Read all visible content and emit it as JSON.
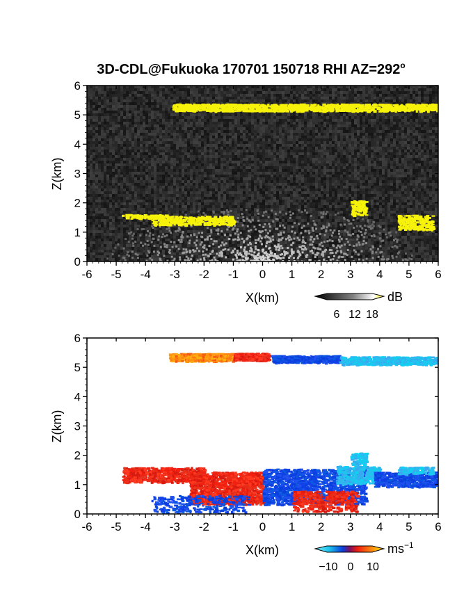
{
  "chart_data": [
    {
      "type": "heatmap",
      "title": "3D-CDL@Fukuoka 170701 150718 RHI AZ=292",
      "title_suffix": "o",
      "xlabel": "X(km)",
      "ylabel": "Z(km)",
      "xlim": [
        -6,
        6
      ],
      "ylim": [
        0,
        6
      ],
      "xticks": [
        "-6",
        "-5",
        "-4",
        "-3",
        "-2",
        "-1",
        "0",
        "1",
        "2",
        "3",
        "4",
        "5",
        "6"
      ],
      "yticks": [
        "0",
        "1",
        "2",
        "3",
        "4",
        "5",
        "6"
      ],
      "background": "grayscale noise",
      "colorbar": {
        "unit": "dB",
        "ticks": [
          "6",
          "12",
          "18"
        ],
        "range": [
          0,
          22
        ]
      },
      "features": [
        {
          "name": "upper cloud layer",
          "x_range": [
            -3.1,
            6.0
          ],
          "z_center": 5.25,
          "level": "high",
          "color": "#f7f20a"
        },
        {
          "name": "lower cloud layer",
          "x_range": [
            -4.9,
            6.0
          ],
          "z_center": 1.4,
          "level": "high",
          "color": "#f7f20a"
        },
        {
          "name": "near-ground echo",
          "x_range": [
            -3.0,
            3.5
          ],
          "z_range": [
            0,
            1.4
          ],
          "level": "medium"
        }
      ]
    },
    {
      "type": "heatmap",
      "xlabel": "X(km)",
      "ylabel": "Z(km)",
      "xlim": [
        -6,
        6
      ],
      "ylim": [
        0,
        6
      ],
      "xticks": [
        "-6",
        "-5",
        "-4",
        "-3",
        "-2",
        "-1",
        "0",
        "1",
        "2",
        "3",
        "4",
        "5",
        "6"
      ],
      "yticks": [
        "0",
        "1",
        "2",
        "3",
        "4",
        "5",
        "6"
      ],
      "colorbar": {
        "unit": "ms",
        "unit_exp": "−1",
        "ticks": [
          "−10",
          "0",
          "10"
        ],
        "range": [
          -15,
          15
        ]
      },
      "features": [
        {
          "name": "upper layer approaching",
          "x_range": [
            -3.2,
            0.3
          ],
          "z_center": 5.35,
          "velocity": 6
        },
        {
          "name": "upper layer receding",
          "x_range": [
            0.3,
            6.0
          ],
          "z_center": 5.25,
          "velocity": -9
        },
        {
          "name": "lower layer positive",
          "x_range": [
            -4.9,
            0.0
          ],
          "z_range": [
            0.0,
            1.6
          ],
          "velocity": 3
        },
        {
          "name": "lower layer negative",
          "x_range": [
            0.0,
            6.0
          ],
          "z_range": [
            0.0,
            2.1
          ],
          "velocity": -4
        }
      ]
    }
  ]
}
